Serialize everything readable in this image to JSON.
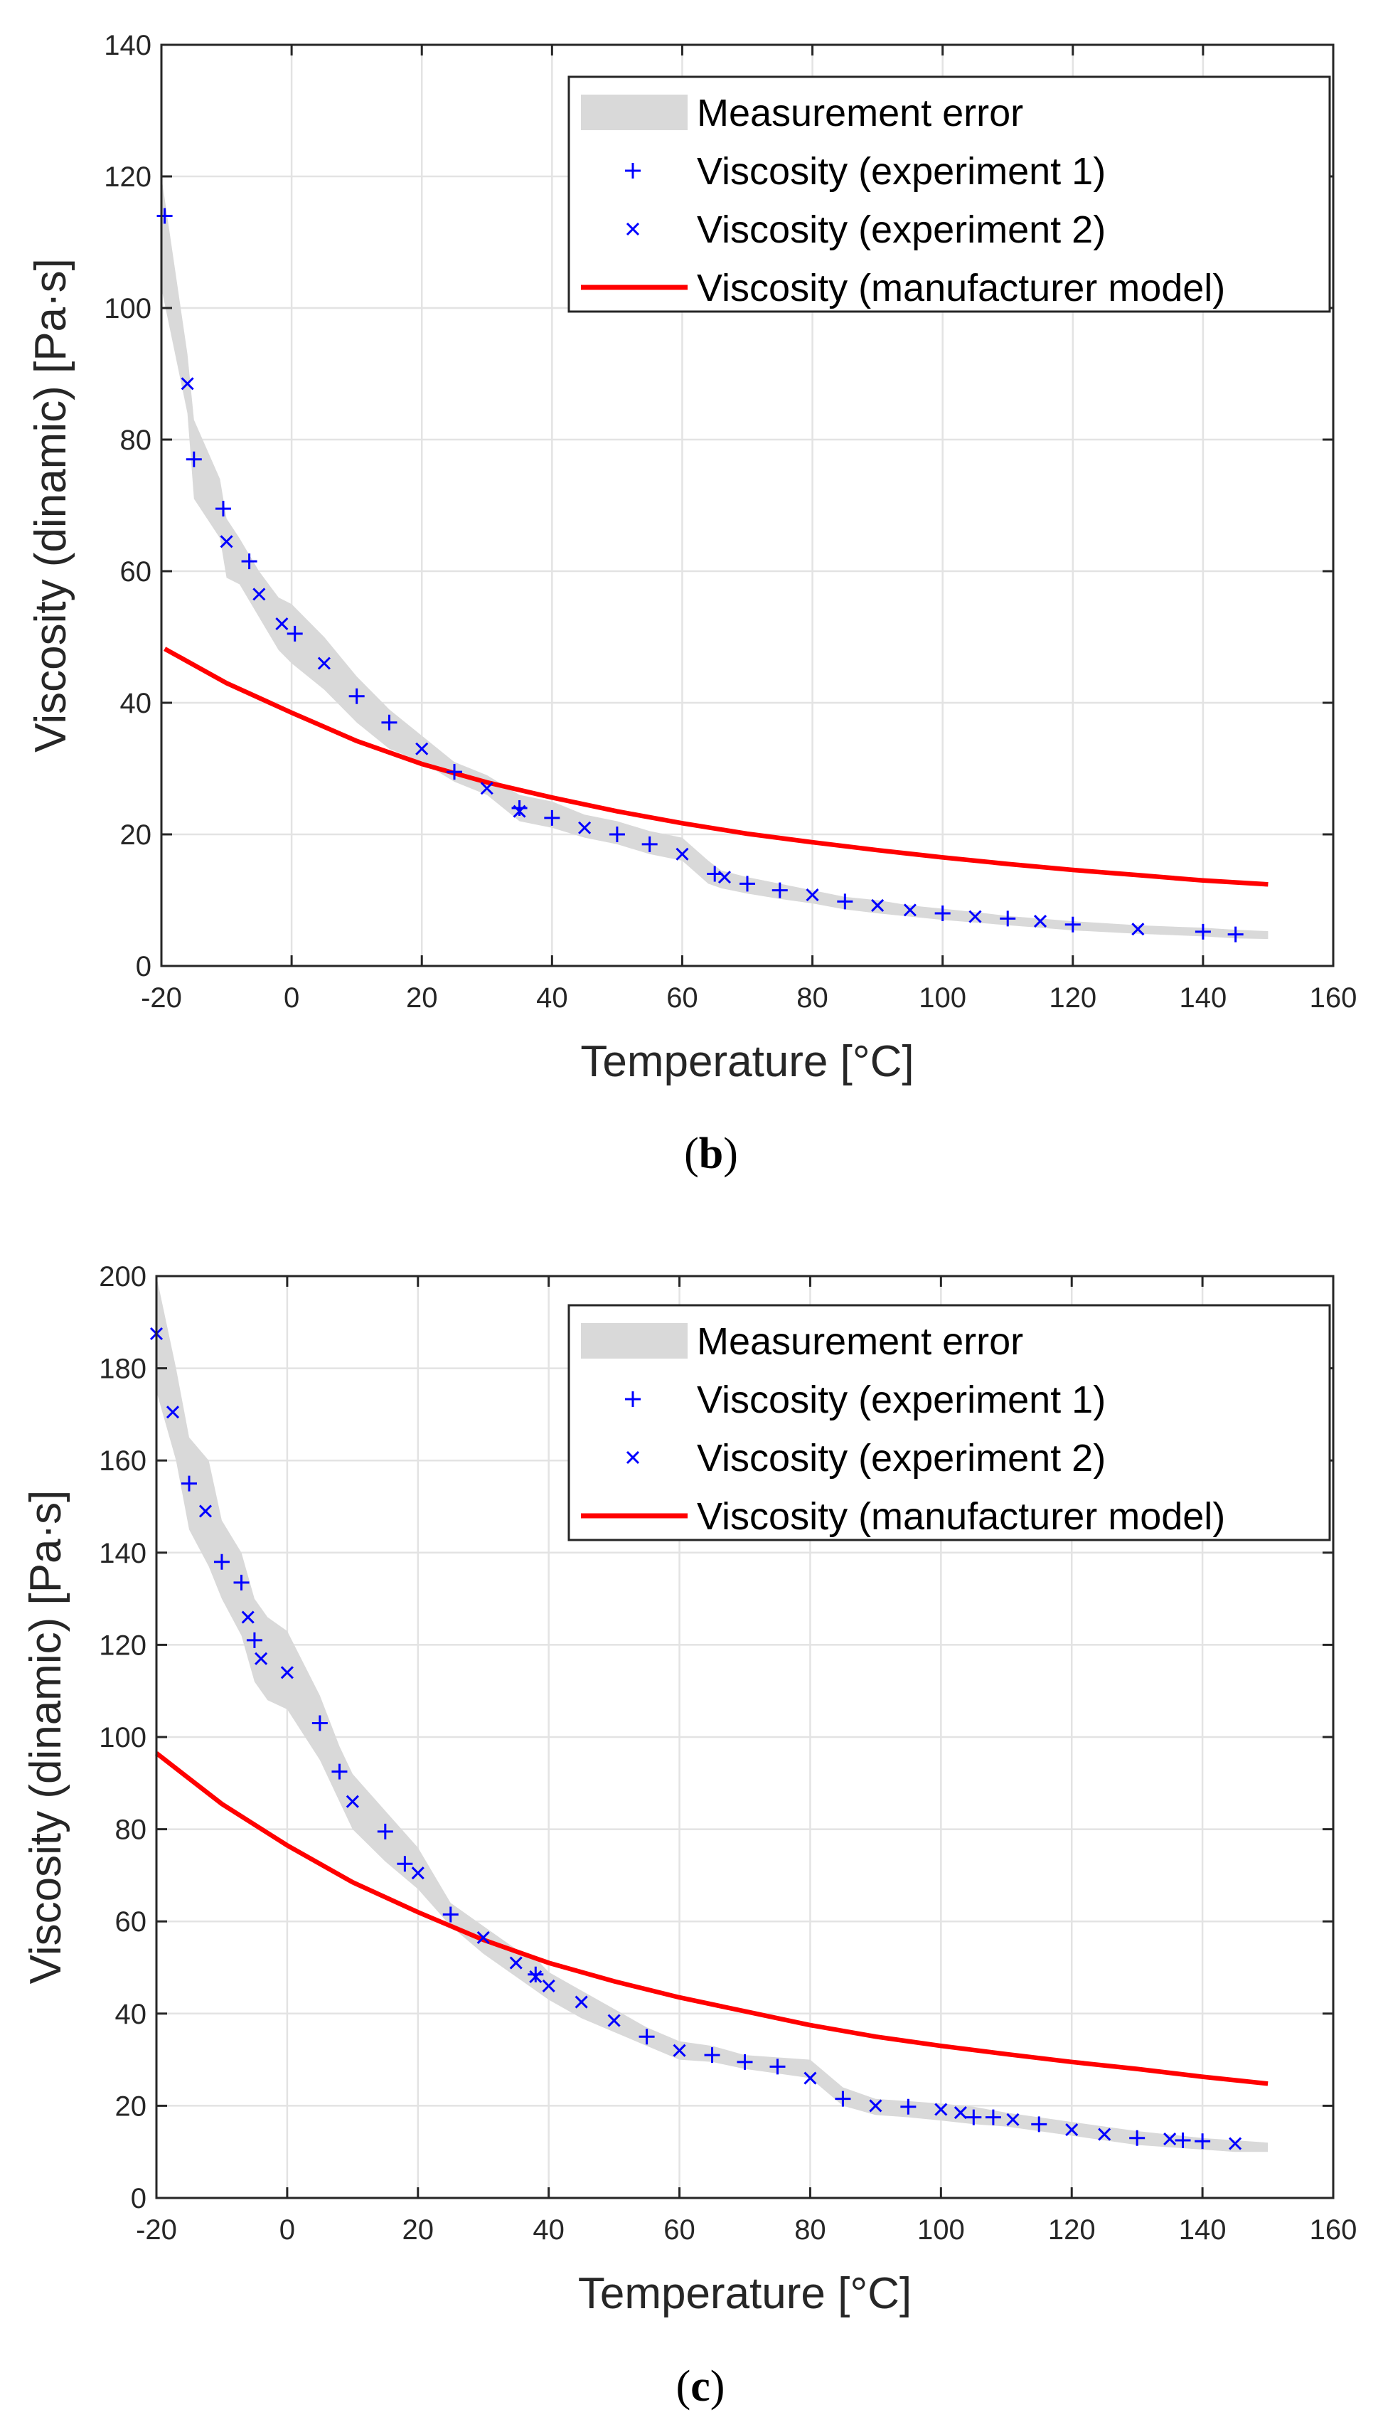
{
  "chart_data": [
    {
      "type": "line",
      "panel_label": "b",
      "xlabel": "Temperature [°C]",
      "ylabel": "Viscosity (dinamic) [Pa·s]",
      "xlim": [
        -20,
        160
      ],
      "ylim": [
        0,
        140
      ],
      "xticks": [
        -20,
        0,
        20,
        40,
        60,
        80,
        100,
        120,
        140,
        160
      ],
      "yticks": [
        0,
        20,
        40,
        60,
        80,
        100,
        120,
        140
      ],
      "grid": true,
      "legend_position": "top-right",
      "legend": [
        "Measurement error",
        "Viscosity (experiment 1)",
        "Viscosity (experiment 2)",
        "Viscosity (manufacturer model)"
      ],
      "error_band": {
        "name": "Measurement error",
        "color": "#d9d9d9",
        "x": [
          -20,
          -16,
          -15,
          -11,
          -10,
          -8,
          -5,
          -2,
          0,
          5,
          10,
          15,
          20,
          25,
          30,
          35,
          40,
          45,
          50,
          55,
          60,
          64,
          66,
          70,
          75,
          80,
          85,
          90,
          95,
          100,
          105,
          110,
          115,
          120,
          130,
          140,
          145,
          150
        ],
        "upper": [
          120,
          93,
          83,
          74,
          68,
          65,
          60,
          56,
          55,
          50,
          44,
          39,
          35,
          31,
          29,
          26,
          25,
          23,
          22,
          20.5,
          19.5,
          16,
          14.5,
          13.5,
          12.5,
          11.5,
          10.5,
          10,
          9.2,
          8.7,
          8.2,
          7.6,
          7.2,
          6.8,
          6.2,
          5.8,
          5.5,
          5.3
        ],
        "lower": [
          103,
          84,
          71,
          65,
          59,
          58,
          53,
          48,
          46,
          42,
          37,
          33,
          31,
          28,
          26,
          22,
          21,
          19.5,
          18.5,
          17,
          16,
          12.5,
          11.8,
          11,
          10.2,
          9.5,
          8.6,
          8,
          7.5,
          7,
          6.6,
          6.2,
          5.8,
          5.4,
          4.9,
          4.5,
          4.2,
          4.1
        ]
      },
      "series": [
        {
          "name": "Viscosity (experiment 1)",
          "marker": "plus",
          "color": "#0000ff",
          "points": [
            [
              -19.5,
              114
            ],
            [
              -15,
              77
            ],
            [
              -10.5,
              69.5
            ],
            [
              -6.5,
              61.5
            ],
            [
              0.5,
              50.5
            ],
            [
              10,
              41
            ],
            [
              15,
              37
            ],
            [
              25,
              29.5
            ],
            [
              35,
              24
            ],
            [
              40,
              22.5
            ],
            [
              50,
              20
            ],
            [
              55,
              18.5
            ],
            [
              65,
              14
            ],
            [
              70,
              12.5
            ],
            [
              75,
              11.5
            ],
            [
              85,
              9.8
            ],
            [
              100,
              8
            ],
            [
              110,
              7.2
            ],
            [
              120,
              6.3
            ],
            [
              140,
              5.2
            ],
            [
              145,
              4.8
            ]
          ]
        },
        {
          "name": "Viscosity (experiment 2)",
          "marker": "x",
          "color": "#0000ff",
          "points": [
            [
              -16,
              88.5
            ],
            [
              -10,
              64.5
            ],
            [
              -5,
              56.5
            ],
            [
              -1.5,
              52
            ],
            [
              5,
              46
            ],
            [
              20,
              33
            ],
            [
              30,
              27
            ],
            [
              35,
              23.5
            ],
            [
              45,
              21
            ],
            [
              60,
              17
            ],
            [
              66.5,
              13.5
            ],
            [
              80,
              10.8
            ],
            [
              90,
              9.2
            ],
            [
              95,
              8.5
            ],
            [
              105,
              7.5
            ],
            [
              115,
              6.8
            ],
            [
              130,
              5.6
            ]
          ]
        },
        {
          "name": "Viscosity (manufacturer model)",
          "type": "line",
          "color": "#ff0000",
          "x": [
            -19.5,
            -10,
            0,
            10,
            20,
            30,
            40,
            50,
            60,
            70,
            80,
            90,
            100,
            110,
            120,
            130,
            140,
            150
          ],
          "y": [
            48.2,
            43,
            38.5,
            34.2,
            30.7,
            27.9,
            25.6,
            23.5,
            21.7,
            20.1,
            18.8,
            17.6,
            16.5,
            15.5,
            14.6,
            13.8,
            13.0,
            12.4
          ]
        }
      ]
    },
    {
      "type": "line",
      "panel_label": "c",
      "xlabel": "Temperature [°C]",
      "ylabel": "Viscosity (dinamic) [Pa·s]",
      "xlim": [
        -20,
        160
      ],
      "ylim": [
        0,
        200
      ],
      "xticks": [
        -20,
        0,
        20,
        40,
        60,
        80,
        100,
        120,
        140,
        160
      ],
      "yticks": [
        0,
        20,
        40,
        60,
        80,
        100,
        120,
        140,
        160,
        180,
        200
      ],
      "grid": true,
      "legend_position": "top-right",
      "legend": [
        "Measurement error",
        "Viscosity (experiment 1)",
        "Viscosity (experiment 2)",
        "Viscosity (manufacturer model)"
      ],
      "error_band": {
        "name": "Measurement error",
        "color": "#d9d9d9",
        "x": [
          -20,
          -17,
          -15,
          -12,
          -10,
          -7,
          -5,
          -3,
          0,
          5,
          8,
          10,
          15,
          20,
          25,
          30,
          35,
          38,
          40,
          45,
          50,
          55,
          60,
          65,
          70,
          75,
          80,
          85,
          90,
          95,
          100,
          105,
          110,
          115,
          120,
          130,
          140,
          145,
          150
        ],
        "upper": [
          200,
          180,
          165,
          160,
          147,
          140,
          130,
          126,
          123,
          109,
          98,
          92,
          84,
          76,
          64,
          59,
          54,
          52,
          49,
          45,
          41,
          37,
          34,
          33,
          31,
          30.5,
          30,
          24,
          21.5,
          21,
          20.5,
          19.8,
          18.5,
          17.5,
          16.5,
          14.5,
          13,
          12.5,
          12
        ],
        "lower": [
          175,
          160,
          145,
          137,
          130,
          122,
          112,
          108,
          106,
          95,
          86,
          80,
          73,
          67,
          59,
          53,
          48,
          45,
          43,
          39,
          36,
          33,
          30,
          29.5,
          28,
          27,
          26,
          20,
          18,
          17.5,
          16.8,
          16,
          15.5,
          14.5,
          13.5,
          11.5,
          10.5,
          10,
          10
        ]
      },
      "series": [
        {
          "name": "Viscosity (experiment 1)",
          "marker": "plus",
          "color": "#0000ff",
          "points": [
            [
              -15,
              155
            ],
            [
              -10,
              138
            ],
            [
              -7,
              133.5
            ],
            [
              -5,
              121
            ],
            [
              5,
              103
            ],
            [
              8,
              92.5
            ],
            [
              15,
              79.5
            ],
            [
              18,
              72.5
            ],
            [
              25,
              61.5
            ],
            [
              38,
              48.5
            ],
            [
              55,
              35
            ],
            [
              65,
              31
            ],
            [
              70,
              29.5
            ],
            [
              75,
              28.5
            ],
            [
              85,
              21.5
            ],
            [
              95,
              19.8
            ],
            [
              105,
              17.5
            ],
            [
              108,
              17.5
            ],
            [
              115,
              16
            ],
            [
              130,
              13
            ],
            [
              137,
              12.5
            ],
            [
              140,
              12.3
            ]
          ]
        },
        {
          "name": "Viscosity (experiment 2)",
          "marker": "x",
          "color": "#0000ff",
          "points": [
            [
              -20,
              187.5
            ],
            [
              -17.5,
              170.5
            ],
            [
              -12.5,
              149
            ],
            [
              -6,
              126
            ],
            [
              -4,
              117
            ],
            [
              0,
              114
            ],
            [
              10,
              86
            ],
            [
              20,
              70.5
            ],
            [
              30,
              56.5
            ],
            [
              35,
              51
            ],
            [
              38,
              48
            ],
            [
              40,
              46
            ],
            [
              45,
              42.5
            ],
            [
              50,
              38.5
            ],
            [
              60,
              32
            ],
            [
              80,
              26
            ],
            [
              90,
              20
            ],
            [
              100,
              19.2
            ],
            [
              103,
              18.5
            ],
            [
              111,
              17
            ],
            [
              120,
              14.8
            ],
            [
              125,
              13.8
            ],
            [
              135,
              12.8
            ],
            [
              145,
              11.8
            ]
          ]
        },
        {
          "name": "Viscosity (manufacturer model)",
          "type": "line",
          "color": "#ff0000",
          "x": [
            -20,
            -10,
            0,
            10,
            20,
            30,
            40,
            50,
            60,
            70,
            80,
            90,
            100,
            110,
            120,
            130,
            140,
            150
          ],
          "y": [
            96.5,
            85.5,
            76.5,
            68.5,
            62,
            56,
            51,
            47,
            43.5,
            40.5,
            37.5,
            35,
            33,
            31.2,
            29.5,
            28,
            26.3,
            24.8
          ]
        }
      ]
    }
  ]
}
